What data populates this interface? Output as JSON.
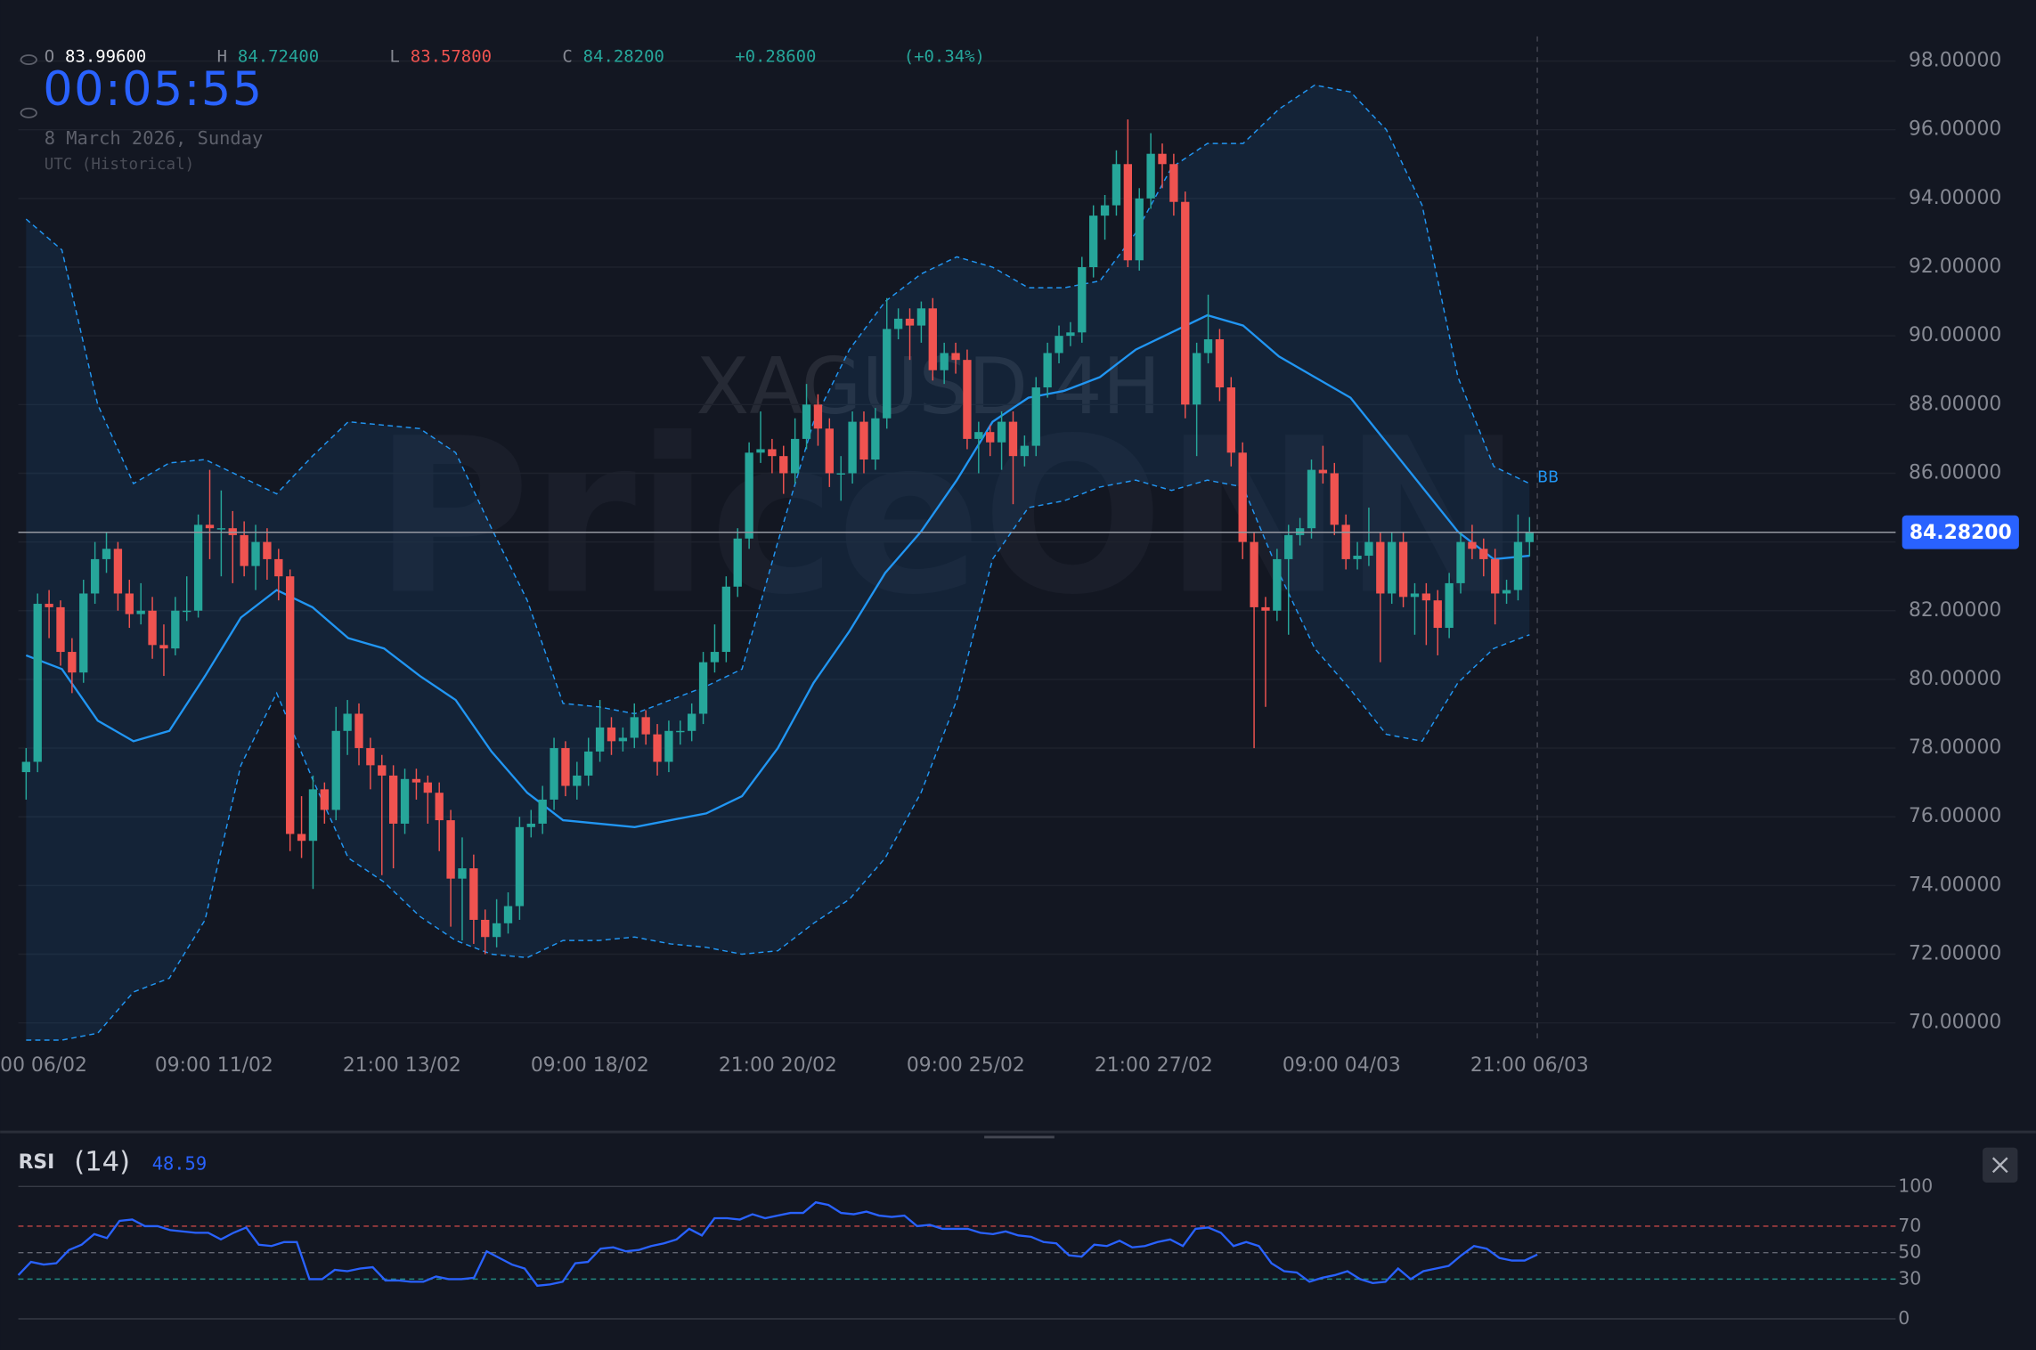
{
  "header": {
    "o_label": "O",
    "open": "83.99600",
    "h_label": "H",
    "high": "84.72400",
    "l_label": "L",
    "low": "83.57800",
    "c_label": "C",
    "close": "84.28200",
    "change": "+0.28600",
    "change_pct": "(+0.34%)",
    "clock": "00:05:55",
    "date": "8 March 2026, Sunday",
    "timezone": "UTC (Historical)"
  },
  "watermark": {
    "symbol": "XAGUSD 4H",
    "brand": "PriceONN"
  },
  "chart_data": [
    {
      "type": "candlestick",
      "x_labels": [
        "00 06/02",
        "09:00 11/02",
        "21:00 13/02",
        "09:00 18/02",
        "21:00 20/02",
        "09:00 25/02",
        "21:00 27/02",
        "09:00 04/03",
        "21:00 06/03"
      ],
      "up_color": "#26a69a",
      "down_color": "#ef5350",
      "ylim": [
        69.6,
        98.7
      ],
      "yticks": [
        {
          "value": 70,
          "label": "70.00000"
        },
        {
          "value": 72,
          "label": "72.00000"
        },
        {
          "value": 74,
          "label": "74.00000"
        },
        {
          "value": 76,
          "label": "76.00000"
        },
        {
          "value": 78,
          "label": "78.00000"
        },
        {
          "value": 80,
          "label": "80.00000"
        },
        {
          "value": 82,
          "label": "82.00000"
        },
        {
          "value": 84,
          "label": "84.00000"
        },
        {
          "value": 86,
          "label": "86.00000"
        },
        {
          "value": 88,
          "label": "88.00000"
        },
        {
          "value": 90,
          "label": "90.00000"
        },
        {
          "value": 92,
          "label": "92.00000"
        },
        {
          "value": 94,
          "label": "94.00000"
        },
        {
          "value": 96,
          "label": "96.00000"
        },
        {
          "value": 98,
          "label": "98.00000"
        }
      ],
      "grid": true,
      "last_price_label": "84.28200",
      "ohlc": [
        [
          77.3,
          78.0,
          76.5,
          77.6
        ],
        [
          77.6,
          82.5,
          77.3,
          82.2
        ],
        [
          82.2,
          82.6,
          81.2,
          82.1
        ],
        [
          82.1,
          82.3,
          80.4,
          80.8
        ],
        [
          80.8,
          81.2,
          79.6,
          80.2
        ],
        [
          80.2,
          82.9,
          79.9,
          82.5
        ],
        [
          82.5,
          84.0,
          82.2,
          83.5
        ],
        [
          83.5,
          84.3,
          83.1,
          83.8
        ],
        [
          83.8,
          84.0,
          82.0,
          82.5
        ],
        [
          82.5,
          82.9,
          81.5,
          81.9
        ],
        [
          81.9,
          82.8,
          81.6,
          82.0
        ],
        [
          82.0,
          82.4,
          80.6,
          81.0
        ],
        [
          81.0,
          81.6,
          80.1,
          80.9
        ],
        [
          80.9,
          82.4,
          80.7,
          82.0
        ],
        [
          82.0,
          83.0,
          81.7,
          82.0
        ],
        [
          82.0,
          84.8,
          81.8,
          84.5
        ],
        [
          84.5,
          86.1,
          83.5,
          84.4
        ],
        [
          84.4,
          85.5,
          83.0,
          84.4
        ],
        [
          84.4,
          84.9,
          82.8,
          84.2
        ],
        [
          84.2,
          84.6,
          83.0,
          83.3
        ],
        [
          83.3,
          84.5,
          82.6,
          84.0
        ],
        [
          84.0,
          84.4,
          82.9,
          83.5
        ],
        [
          83.5,
          83.8,
          82.3,
          83.0
        ],
        [
          83.0,
          83.2,
          75.0,
          75.5
        ],
        [
          75.5,
          76.6,
          74.8,
          75.3
        ],
        [
          75.3,
          77.2,
          73.9,
          76.8
        ],
        [
          76.8,
          77.0,
          75.8,
          76.2
        ],
        [
          76.2,
          79.2,
          75.9,
          78.5
        ],
        [
          78.5,
          79.4,
          77.8,
          79.0
        ],
        [
          79.0,
          79.3,
          77.5,
          78.0
        ],
        [
          78.0,
          78.3,
          76.8,
          77.5
        ],
        [
          77.5,
          77.8,
          74.3,
          77.2
        ],
        [
          77.2,
          77.5,
          74.5,
          75.8
        ],
        [
          75.8,
          77.4,
          75.5,
          77.1
        ],
        [
          77.1,
          77.4,
          76.5,
          77.0
        ],
        [
          77.0,
          77.2,
          75.8,
          76.7
        ],
        [
          76.7,
          77.0,
          75.0,
          75.9
        ],
        [
          75.9,
          76.2,
          72.8,
          74.2
        ],
        [
          74.2,
          75.4,
          72.4,
          74.5
        ],
        [
          74.5,
          74.9,
          72.3,
          73.0
        ],
        [
          73.0,
          73.3,
          72.0,
          72.5
        ],
        [
          72.5,
          73.6,
          72.2,
          72.9
        ],
        [
          72.9,
          73.8,
          72.6,
          73.4
        ],
        [
          73.4,
          76.0,
          73.0,
          75.7
        ],
        [
          75.7,
          76.2,
          75.4,
          75.8
        ],
        [
          75.8,
          76.9,
          75.5,
          76.5
        ],
        [
          76.5,
          78.3,
          76.2,
          78.0
        ],
        [
          78.0,
          78.2,
          76.6,
          76.9
        ],
        [
          76.9,
          77.6,
          76.5,
          77.2
        ],
        [
          77.2,
          78.3,
          76.9,
          77.9
        ],
        [
          77.9,
          79.4,
          77.6,
          78.6
        ],
        [
          78.6,
          78.9,
          77.8,
          78.2
        ],
        [
          78.2,
          78.6,
          77.9,
          78.3
        ],
        [
          78.3,
          79.3,
          78.0,
          78.9
        ],
        [
          78.9,
          79.1,
          78.1,
          78.4
        ],
        [
          78.4,
          78.7,
          77.2,
          77.6
        ],
        [
          77.6,
          78.8,
          77.3,
          78.5
        ],
        [
          78.5,
          78.8,
          78.1,
          78.5
        ],
        [
          78.5,
          79.3,
          78.2,
          79.0
        ],
        [
          79.0,
          80.8,
          78.7,
          80.5
        ],
        [
          80.5,
          81.6,
          80.2,
          80.8
        ],
        [
          80.8,
          83.0,
          80.5,
          82.7
        ],
        [
          82.7,
          84.4,
          82.4,
          84.1
        ],
        [
          84.1,
          86.9,
          83.8,
          86.6
        ],
        [
          86.6,
          87.8,
          86.3,
          86.7
        ],
        [
          86.7,
          87.0,
          86.0,
          86.5
        ],
        [
          86.5,
          86.8,
          85.4,
          86.0
        ],
        [
          86.0,
          87.6,
          85.7,
          87.0
        ],
        [
          87.0,
          88.6,
          86.7,
          88.0
        ],
        [
          88.0,
          88.3,
          86.8,
          87.3
        ],
        [
          87.3,
          87.6,
          85.6,
          86.0
        ],
        [
          86.0,
          86.5,
          85.2,
          86.0
        ],
        [
          86.0,
          87.8,
          85.7,
          87.5
        ],
        [
          87.5,
          87.8,
          86.0,
          86.4
        ],
        [
          86.4,
          87.9,
          86.1,
          87.6
        ],
        [
          87.6,
          91.1,
          87.3,
          90.2
        ],
        [
          90.2,
          90.8,
          89.9,
          90.5
        ],
        [
          90.5,
          90.8,
          89.3,
          90.3
        ],
        [
          90.3,
          91.0,
          89.8,
          90.8
        ],
        [
          90.8,
          91.1,
          88.7,
          89.0
        ],
        [
          89.0,
          89.8,
          88.6,
          89.5
        ],
        [
          89.5,
          89.8,
          88.9,
          89.3
        ],
        [
          89.3,
          89.6,
          86.7,
          87.0
        ],
        [
          87.0,
          87.5,
          86.0,
          87.2
        ],
        [
          87.2,
          87.4,
          86.5,
          86.9
        ],
        [
          86.9,
          87.8,
          86.1,
          87.5
        ],
        [
          87.5,
          87.8,
          85.1,
          86.5
        ],
        [
          86.5,
          87.1,
          86.2,
          86.8
        ],
        [
          86.8,
          88.8,
          86.5,
          88.5
        ],
        [
          88.5,
          89.8,
          88.2,
          89.5
        ],
        [
          89.5,
          90.3,
          89.2,
          90.0
        ],
        [
          90.0,
          90.4,
          89.7,
          90.1
        ],
        [
          90.1,
          92.3,
          89.8,
          92.0
        ],
        [
          92.0,
          93.8,
          91.7,
          93.5
        ],
        [
          93.5,
          94.1,
          92.8,
          93.8
        ],
        [
          93.8,
          95.4,
          93.5,
          95.0
        ],
        [
          95.0,
          96.3,
          92.0,
          92.2
        ],
        [
          92.2,
          94.3,
          91.9,
          94.0
        ],
        [
          94.0,
          95.9,
          93.7,
          95.3
        ],
        [
          95.3,
          95.6,
          94.3,
          95.0
        ],
        [
          95.0,
          95.3,
          93.5,
          93.9
        ],
        [
          93.9,
          94.2,
          87.6,
          88.0
        ],
        [
          88.0,
          89.8,
          86.5,
          89.5
        ],
        [
          89.5,
          91.2,
          89.2,
          89.9
        ],
        [
          89.9,
          90.2,
          88.1,
          88.5
        ],
        [
          88.5,
          88.8,
          86.2,
          86.6
        ],
        [
          86.6,
          86.9,
          83.5,
          84.0
        ],
        [
          84.0,
          84.3,
          78.0,
          82.1
        ],
        [
          82.1,
          82.4,
          79.2,
          82.0
        ],
        [
          82.0,
          83.8,
          81.7,
          83.5
        ],
        [
          83.5,
          84.5,
          81.3,
          84.2
        ],
        [
          84.2,
          84.7,
          83.9,
          84.4
        ],
        [
          84.4,
          86.4,
          84.1,
          86.1
        ],
        [
          86.1,
          86.8,
          85.7,
          86.0
        ],
        [
          86.0,
          86.3,
          84.2,
          84.5
        ],
        [
          84.5,
          84.8,
          83.2,
          83.5
        ],
        [
          83.5,
          84.0,
          83.2,
          83.6
        ],
        [
          83.6,
          85.0,
          83.3,
          84.0
        ],
        [
          84.0,
          84.3,
          80.5,
          82.5
        ],
        [
          82.5,
          84.3,
          82.2,
          84.0
        ],
        [
          84.0,
          84.3,
          82.1,
          82.4
        ],
        [
          82.4,
          82.8,
          81.3,
          82.5
        ],
        [
          82.5,
          82.8,
          81.0,
          82.3
        ],
        [
          82.3,
          82.6,
          80.7,
          81.5
        ],
        [
          81.5,
          83.1,
          81.2,
          82.8
        ],
        [
          82.8,
          84.3,
          82.5,
          84.0
        ],
        [
          84.0,
          84.5,
          83.5,
          83.8
        ],
        [
          83.8,
          84.1,
          83.0,
          83.5
        ],
        [
          83.5,
          83.8,
          81.6,
          82.5
        ],
        [
          82.5,
          82.9,
          82.2,
          82.6
        ],
        [
          82.6,
          84.8,
          82.3,
          84.0
        ],
        [
          83.996,
          84.724,
          83.578,
          84.282
        ]
      ],
      "bands": {
        "name": "BB",
        "color": "#2196f3",
        "upper": [
          93.4,
          92.5,
          88.0,
          85.7,
          86.3,
          86.4,
          85.9,
          85.4,
          86.5,
          87.5,
          87.4,
          87.3,
          86.6,
          84.4,
          82.3,
          79.3,
          79.2,
          79.0,
          79.4,
          79.8,
          80.3,
          84.0,
          87.5,
          89.6,
          91.0,
          91.8,
          92.3,
          92.0,
          91.4,
          91.4,
          91.6,
          93.0,
          94.9,
          95.6,
          95.6,
          96.6,
          97.3,
          97.1,
          96.0,
          93.8,
          88.8,
          86.2,
          85.7
        ],
        "middle": [
          80.7,
          80.3,
          78.8,
          78.2,
          78.5,
          80.1,
          81.8,
          82.6,
          82.1,
          81.2,
          80.9,
          80.1,
          79.4,
          77.9,
          76.7,
          75.9,
          75.8,
          75.7,
          75.9,
          76.1,
          76.6,
          78.0,
          79.9,
          81.4,
          83.1,
          84.3,
          85.8,
          87.5,
          88.2,
          88.4,
          88.8,
          89.6,
          90.1,
          90.6,
          90.3,
          89.4,
          88.8,
          88.2,
          86.9,
          85.6,
          84.3,
          83.5,
          83.6
        ],
        "lower": [
          69.5,
          69.5,
          69.7,
          70.9,
          71.3,
          73.0,
          77.5,
          79.6,
          77.1,
          74.8,
          74.1,
          73.1,
          72.4,
          72.0,
          71.9,
          72.4,
          72.4,
          72.5,
          72.3,
          72.2,
          72.0,
          72.1,
          72.9,
          73.6,
          74.8,
          76.7,
          79.4,
          83.5,
          85.0,
          85.2,
          85.6,
          85.8,
          85.5,
          85.8,
          85.6,
          83.1,
          80.9,
          79.7,
          78.4,
          78.2,
          79.9,
          80.9,
          81.3
        ]
      }
    },
    {
      "type": "line",
      "title": "RSI",
      "subtitle": "(14)",
      "value_label": "48.59",
      "color": "#2962ff",
      "ylim": [
        0,
        100
      ],
      "yticks": [
        0,
        30,
        50,
        70,
        100
      ],
      "values": [
        33,
        43,
        41,
        42,
        52,
        56,
        64,
        61,
        74,
        75,
        70,
        70,
        67,
        66,
        65,
        65,
        60,
        65,
        69,
        56,
        55,
        58,
        58,
        30,
        30,
        37,
        36,
        38,
        39,
        29,
        29,
        28,
        28,
        32,
        30,
        30,
        31,
        51,
        46,
        41,
        38,
        25,
        26,
        28,
        42,
        43,
        53,
        54,
        51,
        52,
        55,
        57,
        60,
        68,
        63,
        76,
        76,
        75,
        79,
        76,
        78,
        80,
        80,
        88,
        86,
        80,
        79,
        81,
        78,
        77,
        78,
        70,
        71,
        68,
        68,
        68,
        65,
        64,
        66,
        63,
        62,
        58,
        57,
        48,
        47,
        56,
        55,
        59,
        54,
        55,
        58,
        60,
        55,
        68,
        69,
        65,
        55,
        58,
        55,
        42,
        36,
        35,
        28,
        31,
        33,
        36,
        30,
        27,
        28,
        38,
        30,
        36,
        38,
        40,
        48,
        55,
        53,
        46,
        44,
        44,
        48.59
      ]
    }
  ]
}
